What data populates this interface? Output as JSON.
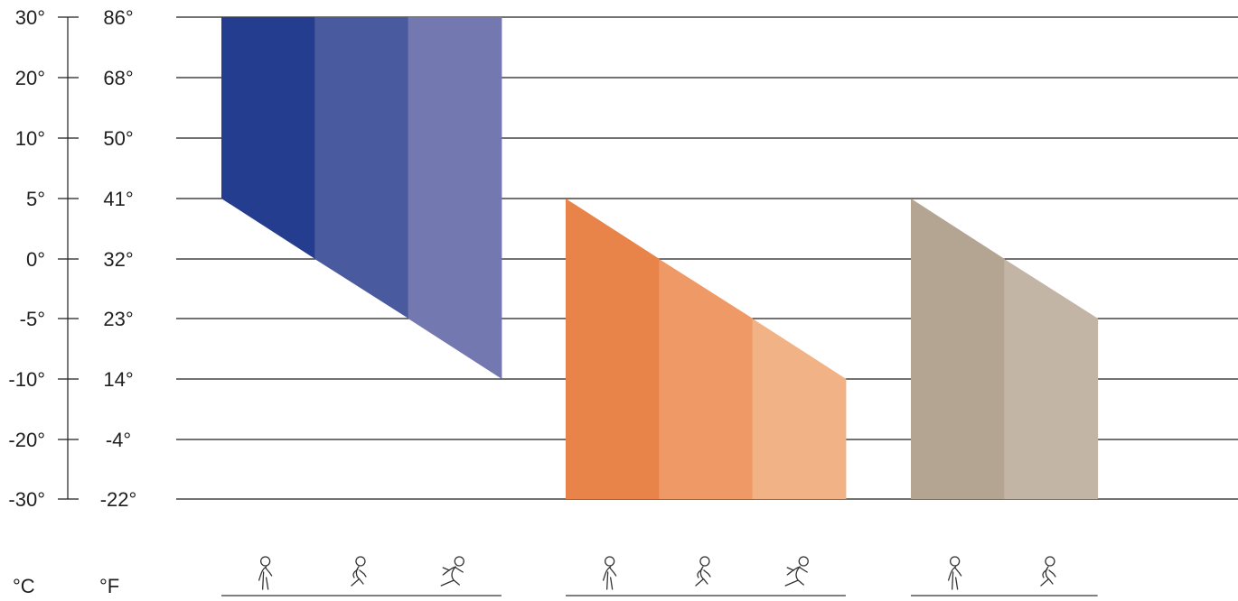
{
  "chart_data": {
    "type": "area",
    "title": "",
    "xlabel": "",
    "ylabel": "",
    "units": {
      "celsius": "°C",
      "fahrenheit": "°F"
    },
    "ylim_celsius": [
      -30,
      30
    ],
    "y_ticks": [
      {
        "c": 30,
        "c_label": "30°",
        "f_label": "86°"
      },
      {
        "c": 20,
        "c_label": "20°",
        "f_label": "68°"
      },
      {
        "c": 10,
        "c_label": "10°",
        "f_label": "50°"
      },
      {
        "c": 5,
        "c_label": "5°",
        "f_label": "41°"
      },
      {
        "c": 0,
        "c_label": "0°",
        "f_label": "32°"
      },
      {
        "c": -5,
        "c_label": "-5°",
        "f_label": "23°"
      },
      {
        "c": -10,
        "c_label": "-10°",
        "f_label": "14°"
      },
      {
        "c": -20,
        "c_label": "-20°",
        "f_label": "-4°"
      },
      {
        "c": -30,
        "c_label": "-30°",
        "f_label": "-22°"
      }
    ],
    "grid": true,
    "activity_icons": [
      "walking-icon",
      "jogging-icon",
      "running-icon"
    ],
    "groups": [
      {
        "colors": [
          "#253d8e",
          "#4a5a9e",
          "#7478b0"
        ],
        "top": 30,
        "columns": [
          {
            "activity": "walking",
            "bottom_start": 5,
            "bottom_end": 0
          },
          {
            "activity": "jogging",
            "bottom_start": 0,
            "bottom_end": -5
          },
          {
            "activity": "running",
            "bottom_start": -5,
            "bottom_end": -10
          }
        ]
      },
      {
        "colors": [
          "#e8834a",
          "#ef9a66",
          "#f1b285"
        ],
        "bottom": -30,
        "columns": [
          {
            "activity": "walking",
            "top_start": 5,
            "top_end": 0
          },
          {
            "activity": "jogging",
            "top_start": 0,
            "top_end": -5
          },
          {
            "activity": "running",
            "top_start": -5,
            "top_end": -10
          }
        ]
      },
      {
        "colors": [
          "#b3a592",
          "#c2b5a5"
        ],
        "bottom": -30,
        "columns": [
          {
            "activity": "walking",
            "top_start": 5,
            "top_end": 0
          },
          {
            "activity": "jogging",
            "top_start": 0,
            "top_end": -5
          }
        ]
      }
    ]
  }
}
